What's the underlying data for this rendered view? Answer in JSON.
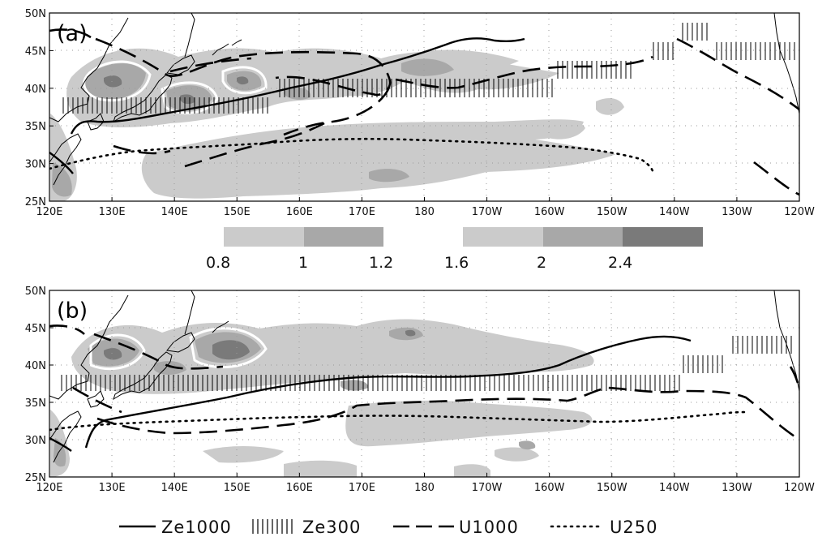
{
  "panels": [
    {
      "label": "(a)",
      "lat_ticks": [
        "50N",
        "45N",
        "40N",
        "35N",
        "30N",
        "25N"
      ],
      "lon_ticks": [
        "120E",
        "130E",
        "140E",
        "150E",
        "160E",
        "170E",
        "180",
        "170W",
        "160W",
        "150W",
        "140W",
        "130W",
        "120W"
      ]
    },
    {
      "label": "(b)",
      "lat_ticks": [
        "50N",
        "45N",
        "40N",
        "35N",
        "30N",
        "25N"
      ],
      "lon_ticks": [
        "120E",
        "130E",
        "140E",
        "150E",
        "160E",
        "170E",
        "180",
        "170W",
        "160W",
        "150W",
        "140W",
        "130W",
        "120W"
      ]
    }
  ],
  "colorbar": {
    "left_block": [
      {
        "label": "0.8",
        "color": "#cbcbcb"
      },
      {
        "label": "1",
        "color": "#a8a8a8"
      },
      {
        "label": "1.2",
        "color": null
      }
    ],
    "right_block": [
      {
        "label": "1.6",
        "color": "#cbcbcb"
      },
      {
        "label": "2",
        "color": "#a8a8a8"
      },
      {
        "label": "2.4",
        "color": "#7a7a7a"
      }
    ]
  },
  "legend": [
    {
      "label": "Ze1000",
      "style": "solid"
    },
    {
      "label": "Ze300",
      "style": "hatch"
    },
    {
      "label": "U1000",
      "style": "dashed"
    },
    {
      "label": "U250",
      "style": "dotted"
    }
  ],
  "colors": {
    "shade_light": "#cbcbcb",
    "shade_mid": "#a8a8a8",
    "shade_dark": "#7a7a7a",
    "line": "#000000"
  }
}
